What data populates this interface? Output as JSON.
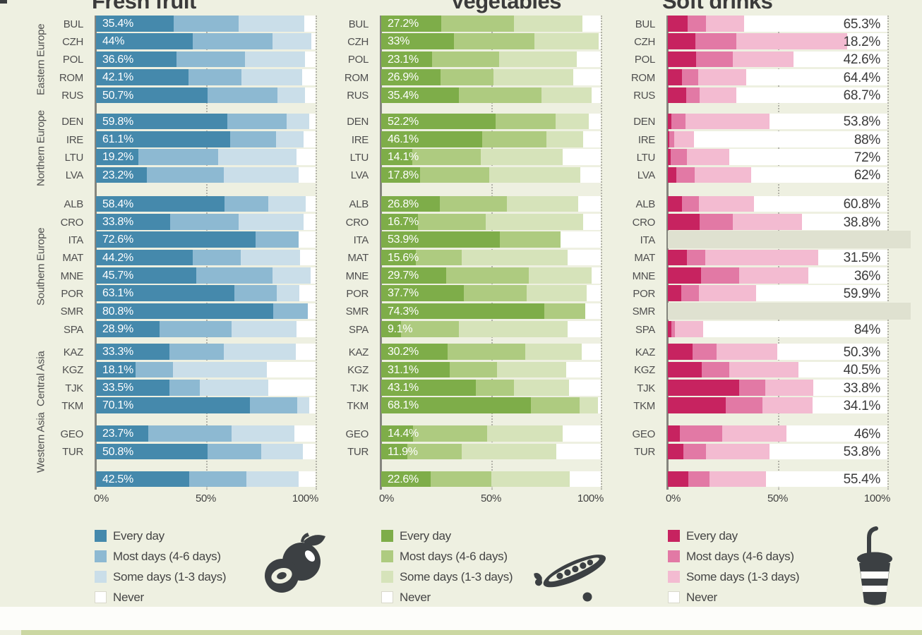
{
  "page": {
    "background": "#eef0e1",
    "no_data_color": "#dfe1d0",
    "bottom_white_band_color": "#fdfdfa",
    "bottom_green_band_color": "#cbd7a2",
    "top_left_mark_color": "#3a3d3f"
  },
  "groups": [
    {
      "label": "Eastern Europe",
      "rows": [
        0,
        4
      ]
    },
    {
      "label": "Northern Europe",
      "rows": [
        5,
        8
      ]
    },
    {
      "label": "Southern Europe",
      "rows": [
        9,
        16
      ]
    },
    {
      "label": "Central Asia",
      "rows": [
        17,
        20
      ]
    },
    {
      "label": "Western Asia",
      "rows": [
        21,
        22
      ]
    }
  ],
  "chart_data": [
    {
      "type": "bar",
      "stacked": true,
      "orientation": "horizontal",
      "title": "Fresh fruit",
      "icon": "plum-icon",
      "xlim": [
        0,
        100
      ],
      "x_ticks": [
        "0%",
        "50%",
        "100%"
      ],
      "grid": "dotted vertical at 50% and 100%",
      "legend": [
        "Every day",
        "Most days (4-6 days)",
        "Some days (1-3 days)",
        "Never"
      ],
      "legend_position": "bottom-left",
      "colors": [
        "#4589ac",
        "#8db9d2",
        "#cadee9",
        "#ffffff"
      ],
      "value_labels": "every-day % printed in white inside bar",
      "categories": [
        "BUL",
        "CZH",
        "POL",
        "ROM",
        "RUS",
        "DEN",
        "IRE",
        "LTU",
        "LVA",
        "ALB",
        "CRO",
        "ITA",
        "MAT",
        "MNE",
        "POR",
        "SMR",
        "SPA",
        "KAZ",
        "KGZ",
        "TJK",
        "TKM",
        "GEO",
        "TUR",
        ""
      ],
      "bar_labels": [
        "35.4%",
        "44%",
        "36.6%",
        "42.1%",
        "50.7%",
        "59.8%",
        "61.1%",
        "19.2%",
        "23.2%",
        "58.4%",
        "33.8%",
        "72.6%",
        "44.2%",
        "45.7%",
        "63.1%",
        "80.8%",
        "28.9%",
        "33.3%",
        "18.1%",
        "33.5%",
        "70.1%",
        "23.7%",
        "50.8%",
        "42.5%"
      ],
      "series": [
        {
          "name": "Every day",
          "values": [
            35.4,
            44,
            36.6,
            42.1,
            50.7,
            59.8,
            61.1,
            19.2,
            23.2,
            58.4,
            33.8,
            72.6,
            44.2,
            45.7,
            63.1,
            80.8,
            28.9,
            33.3,
            18.1,
            33.5,
            70.1,
            23.7,
            50.8,
            42.5
          ]
        },
        {
          "name": "Most days (4-6 days)",
          "values": [
            29.6,
            36.4,
            31.4,
            24,
            32,
            27,
            20.9,
            36.5,
            34.9,
            20.1,
            31.2,
            19.6,
            21.7,
            34.7,
            19.1,
            15.7,
            32.9,
            24.8,
            16.9,
            13.9,
            21.4,
            38.1,
            24.4,
            26.1
          ]
        },
        {
          "name": "Some days (1-3 days)",
          "values": [
            30,
            17.6,
            27.3,
            27.7,
            12.4,
            10.4,
            12.7,
            35.6,
            34.3,
            16.9,
            29.5,
            0,
            27,
            17.3,
            10.4,
            0,
            29.5,
            33,
            42.9,
            31.1,
            5.7,
            28.4,
            19.1,
            23.8
          ]
        },
        {
          "name": "Never",
          "values": [
            5,
            2,
            4.7,
            6.2,
            4.9,
            2.8,
            5.3,
            8.7,
            7.6,
            4.6,
            5.5,
            7.8,
            7.1,
            2.3,
            7.4,
            3.5,
            8.7,
            8.9,
            22.1,
            21.5,
            2.8,
            9.8,
            5.7,
            7.6
          ]
        }
      ],
      "no_data_rows": []
    },
    {
      "type": "bar",
      "stacked": true,
      "orientation": "horizontal",
      "title": "Vegetables",
      "icon": "pea-pod-icon",
      "xlim": [
        0,
        100
      ],
      "x_ticks": [
        "0%",
        "50%",
        "100%"
      ],
      "grid": "dotted vertical at 50% and 100%",
      "legend": [
        "Every day",
        "Most days (4-6 days)",
        "Some days (1-3 days)",
        "Never"
      ],
      "legend_position": "bottom-left",
      "colors": [
        "#7ead49",
        "#aecb80",
        "#d6e3ba",
        "#ffffff"
      ],
      "value_labels": "every-day % printed in white inside bar",
      "categories": [
        "BUL",
        "CZH",
        "POL",
        "ROM",
        "RUS",
        "DEN",
        "IRE",
        "LTU",
        "LVA",
        "ALB",
        "CRO",
        "ITA",
        "MAT",
        "MNE",
        "POR",
        "SMR",
        "SPA",
        "KAZ",
        "KGZ",
        "TJK",
        "TKM",
        "GEO",
        "TUR",
        ""
      ],
      "bar_labels": [
        "27.2%",
        "33%",
        "23.1%",
        "26.9%",
        "35.4%",
        "52.2%",
        "46.1%",
        "14.1%",
        "17.8%",
        "26.8%",
        "16.7%",
        "53.9%",
        "15.6%",
        "29.7%",
        "37.7%",
        "74.3%",
        "9.1%",
        "30.2%",
        "31.1%",
        "43.1%",
        "68.1%",
        "14.4%",
        "11.9%",
        "22.6%"
      ],
      "series": [
        {
          "name": "Every day",
          "values": [
            27.2,
            33,
            23.1,
            26.9,
            35.4,
            52.2,
            46.1,
            14.1,
            17.8,
            26.8,
            16.7,
            53.9,
            15.6,
            29.7,
            37.7,
            74.3,
            9.1,
            30.2,
            31.1,
            43.1,
            68.1,
            14.4,
            11.9,
            22.6
          ]
        },
        {
          "name": "Most days (4-6 days)",
          "values": [
            33.3,
            36.9,
            30.7,
            24.2,
            37.7,
            27.2,
            29.2,
            31.1,
            31.3,
            30.5,
            30.9,
            27.8,
            21,
            37.5,
            28.4,
            18.5,
            26.4,
            35.4,
            21.6,
            17.3,
            22.2,
            33.8,
            24.9,
            27.7
          ]
        },
        {
          "name": "Some days (1-3 days)",
          "values": [
            31,
            29,
            35.4,
            36.3,
            22.6,
            15.3,
            16.7,
            37.3,
            41.5,
            32.5,
            44.3,
            0,
            48.3,
            28.5,
            27.4,
            0,
            49.4,
            25.8,
            31.7,
            25.1,
            8.4,
            34.4,
            42.8,
            35.7
          ]
        },
        {
          "name": "Never",
          "values": [
            8.5,
            1.1,
            10.8,
            12.6,
            4.3,
            5.3,
            8,
            17.5,
            9.4,
            10.2,
            8.1,
            18.3,
            15.1,
            4.3,
            6.5,
            7.2,
            15.1,
            8.6,
            15.6,
            14.5,
            1.3,
            17.4,
            20.4,
            14
          ]
        }
      ],
      "no_data_rows": []
    },
    {
      "type": "bar",
      "stacked": true,
      "orientation": "horizontal",
      "title": "Soft drinks",
      "icon": "drink-cup-icon",
      "xlim": [
        0,
        100
      ],
      "x_ticks": [
        "0%",
        "50%",
        "100%"
      ],
      "grid": "dotted vertical at 50% and 100%",
      "legend": [
        "Every day",
        "Most days (4-6 days)",
        "Some days (1-3 days)",
        "Never"
      ],
      "legend_position": "bottom-left",
      "colors": [
        "#c72360",
        "#e279a5",
        "#f3bbd1",
        "#ffffff"
      ],
      "value_labels": "never % printed right of bar",
      "categories": [
        "BUL",
        "CZH",
        "POL",
        "ROM",
        "RUS",
        "DEN",
        "IRE",
        "LTU",
        "LVA",
        "ALB",
        "CRO",
        "ITA",
        "MAT",
        "MNE",
        "POR",
        "SMR",
        "SPA",
        "KAZ",
        "KGZ",
        "TJK",
        "TKM",
        "GEO",
        "TUR",
        ""
      ],
      "bar_labels": [
        "65.3%",
        "18.2%",
        "42.6%",
        "64.4%",
        "68.7%",
        "53.8%",
        "88%",
        "72%",
        "62%",
        "60.8%",
        "38.8%",
        "",
        "31.5%",
        "36%",
        "59.9%",
        "",
        "84%",
        "50.3%",
        "40.5%",
        "33.8%",
        "34.1%",
        "46%",
        "53.8%",
        "55.4%"
      ],
      "series": [
        {
          "name": "Every day",
          "values": [
            9.1,
            12.6,
            12.8,
            6.5,
            8.2,
            1.5,
            0.5,
            1.4,
            4,
            6.5,
            14.4,
            null,
            8.8,
            15.1,
            6.2,
            null,
            1.5,
            11.3,
            15.3,
            32.6,
            26.5,
            5.6,
            7.2,
            9.4
          ]
        },
        {
          "name": "Most days (4-6 days)",
          "values": [
            8.3,
            18.5,
            16.7,
            7.2,
            6.2,
            6.6,
            2.5,
            7.4,
            8.3,
            7.7,
            15.3,
            null,
            8.1,
            17.3,
            8,
            null,
            1.7,
            10.9,
            12.6,
            11.7,
            16.6,
            19.1,
            10.2,
            9.6
          ]
        },
        {
          "name": "Some days (1-3 days)",
          "values": [
            17.3,
            50.7,
            27.9,
            21.9,
            16.9,
            38.1,
            9,
            19.2,
            25.7,
            25,
            31.5,
            null,
            51.6,
            31.6,
            25.9,
            null,
            12.8,
            27.5,
            31.6,
            21.9,
            22.8,
            29.3,
            28.8,
            25.6
          ]
        },
        {
          "name": "Never",
          "values": [
            65.3,
            18.2,
            42.6,
            64.4,
            68.7,
            53.8,
            88,
            72,
            62,
            60.8,
            38.8,
            null,
            31.5,
            36,
            59.9,
            null,
            84,
            50.3,
            40.5,
            33.8,
            34.1,
            46,
            53.8,
            55.4
          ]
        }
      ],
      "no_data_rows": [
        11,
        15
      ]
    }
  ]
}
